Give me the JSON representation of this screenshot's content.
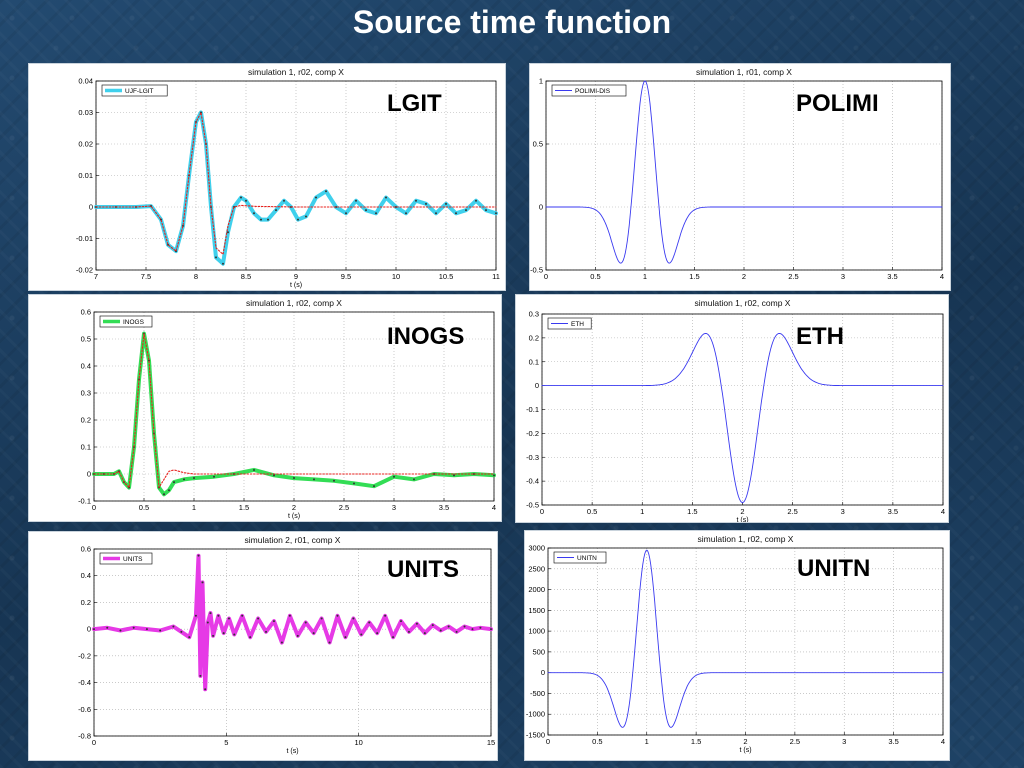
{
  "slide": {
    "title": "Source time function"
  },
  "chart_data": [
    {
      "id": "lgit",
      "type": "line",
      "title": "simulation 1, r02, comp X",
      "xlabel": "t (s)",
      "ylabel": "",
      "group_label": "LGIT",
      "xlim": [
        7,
        11
      ],
      "ylim": [
        -0.02,
        0.04
      ],
      "xticks": [
        7,
        7.5,
        8,
        8.5,
        9,
        9.5,
        10,
        10.5,
        11
      ],
      "yticks": [
        -0.02,
        -0.01,
        0,
        0.01,
        0.02,
        0.03,
        0.04
      ],
      "grid": true,
      "legend_position": "top-left",
      "series": [
        {
          "name": "UJF-LGIT",
          "color": "#3fd0ec",
          "style": "thick",
          "legend": true,
          "x": [
            7,
            7.2,
            7.4,
            7.55,
            7.65,
            7.72,
            7.8,
            7.87,
            7.93,
            8.0,
            8.05,
            8.1,
            8.15,
            8.2,
            8.27,
            8.32,
            8.38,
            8.45,
            8.5,
            8.58,
            8.65,
            8.72,
            8.8,
            8.88,
            8.95,
            9.02,
            9.1,
            9.2,
            9.3,
            9.4,
            9.5,
            9.6,
            9.7,
            9.8,
            9.9,
            10.0,
            10.1,
            10.2,
            10.3,
            10.4,
            10.5,
            10.6,
            10.7,
            10.8,
            10.9,
            11.0
          ],
          "y": [
            0,
            0,
            0,
            0.0003,
            -0.004,
            -0.012,
            -0.014,
            -0.006,
            0.01,
            0.027,
            0.03,
            0.02,
            0.0,
            -0.016,
            -0.018,
            -0.008,
            0.0,
            0.003,
            0.002,
            -0.002,
            -0.004,
            -0.004,
            -0.001,
            0.002,
            0.0,
            -0.004,
            -0.003,
            0.003,
            0.005,
            0.0,
            -0.002,
            0.002,
            -0.001,
            -0.002,
            0.003,
            0.0,
            -0.002,
            0.002,
            0.001,
            -0.002,
            0.001,
            -0.002,
            -0.001,
            0.002,
            -0.001,
            -0.002
          ]
        },
        {
          "name": "",
          "color": "#e8201c",
          "style": "dotted",
          "legend": false,
          "x": [
            7,
            7.2,
            7.4,
            7.55,
            7.65,
            7.72,
            7.8,
            7.87,
            7.93,
            8.0,
            8.05,
            8.1,
            8.15,
            8.2,
            8.27,
            8.32,
            8.38,
            8.45,
            8.6,
            9.0,
            9.5,
            10.0,
            10.5,
            11.0
          ],
          "y": [
            0,
            0,
            0,
            0.0003,
            -0.004,
            -0.012,
            -0.014,
            -0.006,
            0.01,
            0.027,
            0.03,
            0.02,
            0.0,
            -0.013,
            -0.015,
            -0.006,
            0.0,
            0.0005,
            0.0002,
            0,
            0,
            0,
            0,
            0
          ]
        }
      ]
    },
    {
      "id": "polimi",
      "type": "line",
      "title": "simulation 1, r01, comp X",
      "xlabel": "",
      "ylabel": "",
      "group_label": "POLIMI",
      "xlim": [
        0,
        4
      ],
      "ylim": [
        -0.5,
        1
      ],
      "xticks": [
        0,
        0.5,
        1,
        1.5,
        2,
        2.5,
        3,
        3.5,
        4
      ],
      "yticks": [
        -0.5,
        0,
        0.5,
        1
      ],
      "grid": true,
      "legend_position": "top-left",
      "series": [
        {
          "name": "POLIMI-DIS",
          "color": "#3a3af0",
          "style": "thin",
          "legend": true,
          "function": "ricker",
          "amplitude": 1,
          "center": 1,
          "width": 0.2,
          "x_range": [
            0,
            4
          ]
        }
      ]
    },
    {
      "id": "inogs",
      "type": "line",
      "title": "simulation 1, r02, comp X",
      "xlabel": "t (s)",
      "ylabel": "",
      "group_label": "INOGS",
      "xlim": [
        0,
        4
      ],
      "ylim": [
        -0.1,
        0.6
      ],
      "xticks": [
        0,
        0.5,
        1,
        1.5,
        2,
        2.5,
        3,
        3.5,
        4
      ],
      "yticks": [
        -0.1,
        0,
        0.1,
        0.2,
        0.3,
        0.4,
        0.5,
        0.6
      ],
      "grid": true,
      "legend_position": "top-left",
      "series": [
        {
          "name": "INOGS",
          "color": "#33dd55",
          "style": "thick",
          "legend": true,
          "x": [
            0,
            0.1,
            0.2,
            0.25,
            0.3,
            0.35,
            0.4,
            0.45,
            0.5,
            0.55,
            0.6,
            0.65,
            0.7,
            0.75,
            0.8,
            0.9,
            1.0,
            1.2,
            1.4,
            1.6,
            1.8,
            2.0,
            2.2,
            2.4,
            2.6,
            2.8,
            3.0,
            3.2,
            3.4,
            3.6,
            3.8,
            4.0
          ],
          "y": [
            0,
            0,
            0.0,
            0.01,
            -0.03,
            -0.05,
            0.1,
            0.35,
            0.52,
            0.42,
            0.15,
            -0.05,
            -0.075,
            -0.06,
            -0.03,
            -0.02,
            -0.015,
            -0.01,
            0.0,
            0.015,
            -0.005,
            -0.015,
            -0.02,
            -0.025,
            -0.035,
            -0.045,
            -0.01,
            -0.02,
            0.0,
            -0.005,
            0.0,
            -0.005
          ]
        },
        {
          "name": "",
          "color": "#e8201c",
          "style": "dotted",
          "legend": false,
          "x": [
            0,
            0.1,
            0.2,
            0.25,
            0.3,
            0.35,
            0.4,
            0.45,
            0.5,
            0.55,
            0.6,
            0.65,
            0.7,
            0.75,
            0.8,
            0.9,
            1.0,
            1.5,
            2.0,
            2.5,
            3.0,
            3.5,
            4.0
          ],
          "y": [
            0,
            0,
            0.0,
            0.01,
            -0.03,
            -0.05,
            0.1,
            0.35,
            0.52,
            0.42,
            0.15,
            -0.05,
            -0.02,
            0.01,
            0.015,
            0.005,
            0.0,
            0,
            0,
            0,
            0,
            0,
            0
          ]
        }
      ]
    },
    {
      "id": "eth",
      "type": "line",
      "title": "simulation 1, r02, comp X",
      "xlabel": "t (s)",
      "ylabel": "",
      "group_label": "ETH",
      "xlim": [
        0,
        4
      ],
      "ylim": [
        -0.5,
        0.3
      ],
      "xticks": [
        0,
        0.5,
        1,
        1.5,
        2,
        2.5,
        3,
        3.5,
        4
      ],
      "yticks": [
        -0.5,
        -0.4,
        -0.3,
        -0.2,
        -0.1,
        0,
        0.1,
        0.2,
        0.3
      ],
      "grid": true,
      "legend_position": "top-left",
      "series": [
        {
          "name": "ETH",
          "color": "#3a3af0",
          "style": "thin",
          "legend": true,
          "function": "ricker",
          "amplitude": -0.49,
          "center": 2,
          "width": 0.3,
          "x_range": [
            0,
            4
          ]
        }
      ]
    },
    {
      "id": "units",
      "type": "line",
      "title": "simulation 2, r01, comp X",
      "xlabel": "t (s)",
      "ylabel": "",
      "group_label": "UNITS",
      "xlim": [
        0,
        15
      ],
      "ylim": [
        -0.8,
        0.6
      ],
      "xticks": [
        0,
        5,
        10,
        15
      ],
      "yticks": [
        -0.8,
        -0.6,
        -0.4,
        -0.2,
        0,
        0.2,
        0.4,
        0.6
      ],
      "grid": true,
      "legend_position": "top-left",
      "series": [
        {
          "name": "UNITS",
          "color": "#e63ae6",
          "style": "thick",
          "legend": true,
          "x": [
            0,
            0.5,
            1,
            1.5,
            2,
            2.5,
            3,
            3.3,
            3.6,
            3.85,
            3.95,
            4.02,
            4.1,
            4.2,
            4.3,
            4.4,
            4.5,
            4.7,
            4.9,
            5.1,
            5.3,
            5.6,
            5.9,
            6.2,
            6.5,
            6.8,
            7.1,
            7.4,
            7.7,
            8.0,
            8.3,
            8.6,
            8.9,
            9.2,
            9.5,
            9.8,
            10.1,
            10.4,
            10.7,
            11.0,
            11.3,
            11.6,
            11.9,
            12.2,
            12.5,
            12.8,
            13.1,
            13.4,
            13.7,
            14.0,
            14.3,
            14.6,
            15.0
          ],
          "y": [
            0,
            0.01,
            -0.01,
            0.01,
            0,
            -0.01,
            0.02,
            -0.02,
            -0.06,
            0.1,
            0.55,
            -0.35,
            0.35,
            -0.45,
            0.05,
            0.12,
            -0.05,
            0.1,
            -0.03,
            0.08,
            -0.04,
            0.1,
            -0.06,
            0.08,
            -0.02,
            0.06,
            -0.1,
            0.1,
            -0.05,
            0.05,
            -0.03,
            0.08,
            -0.1,
            0.1,
            -0.06,
            0.08,
            -0.04,
            0.05,
            -0.03,
            0.1,
            -0.06,
            0.06,
            -0.02,
            0.04,
            -0.03,
            0.03,
            -0.01,
            0.02,
            -0.02,
            0.02,
            0.0,
            0.01,
            0.0
          ]
        }
      ]
    },
    {
      "id": "unitn",
      "type": "line",
      "title": "simulation 1, r02, comp X",
      "xlabel": "t (s)",
      "ylabel": "",
      "group_label": "UNITN",
      "xlim": [
        0,
        4
      ],
      "ylim": [
        -1500,
        3000
      ],
      "xticks": [
        0,
        0.5,
        1,
        1.5,
        2,
        2.5,
        3,
        3.5,
        4
      ],
      "yticks": [
        -1500,
        -1000,
        -500,
        0,
        500,
        1000,
        1500,
        2000,
        2500,
        3000
      ],
      "grid": true,
      "legend_position": "top-left",
      "series": [
        {
          "name": "UNITN",
          "color": "#3a3af0",
          "style": "thin",
          "legend": true,
          "function": "ricker",
          "amplitude": 2950,
          "center": 1,
          "width": 0.2,
          "x_range": [
            0,
            4
          ]
        }
      ]
    }
  ]
}
